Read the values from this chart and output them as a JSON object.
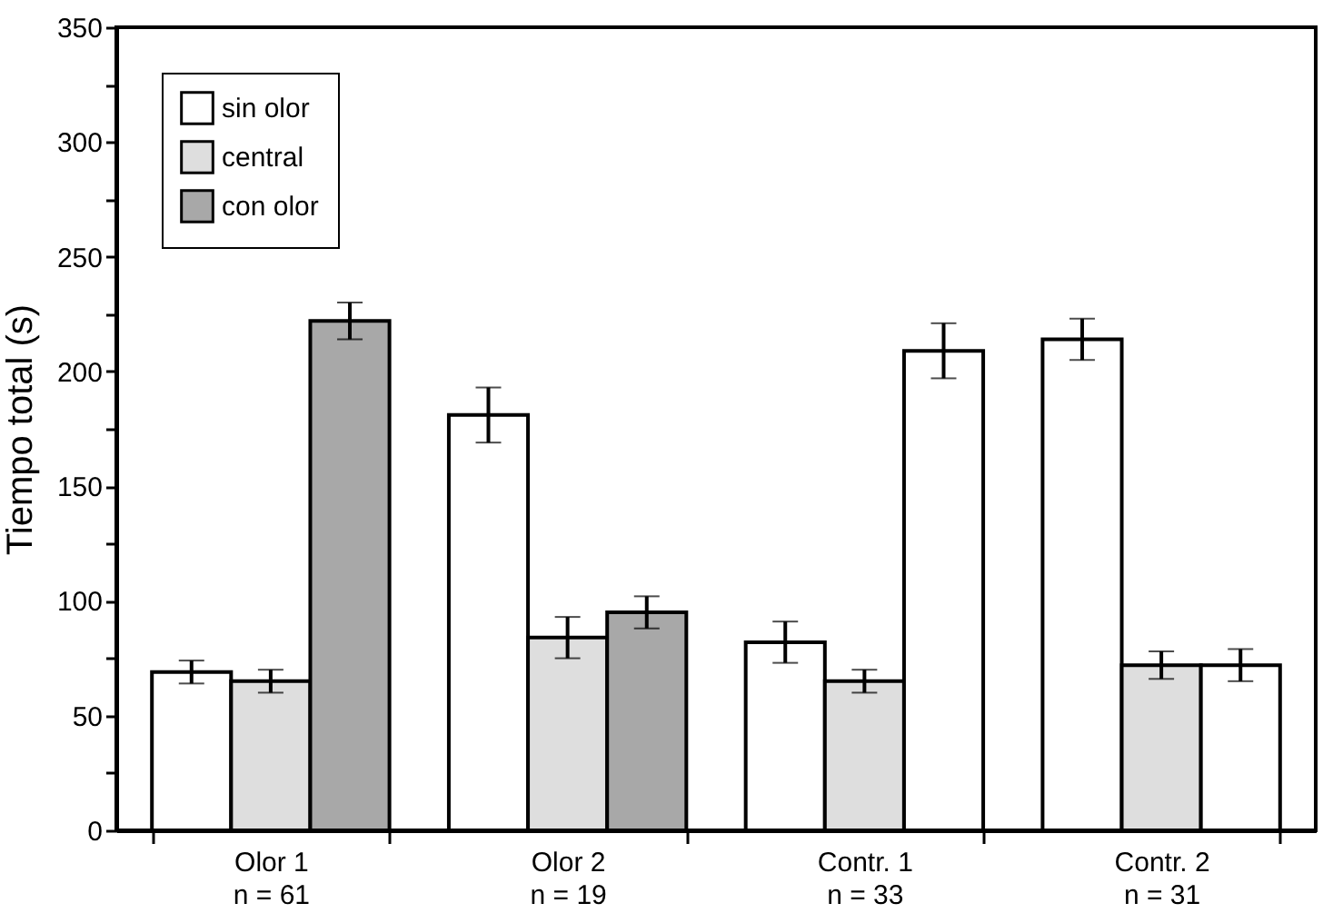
{
  "chart_data": {
    "type": "bar",
    "ylabel": "Tiempo total (s)",
    "categories": [
      "Olor 1\nn = 61",
      "Olor 2\nn = 19",
      "Contr. 1\nn = 33",
      "Contr. 2\nn = 31"
    ],
    "series": [
      {
        "name": "sin olor",
        "color": "#ffffff",
        "values": [
          69,
          181,
          82,
          214
        ],
        "errors": [
          5,
          12,
          9,
          9
        ]
      },
      {
        "name": "central",
        "color": "#dedede",
        "values": [
          65,
          84,
          65,
          72
        ],
        "errors": [
          5,
          9,
          5,
          6
        ]
      },
      {
        "name": "con olor",
        "color": "#a8a8a8",
        "colors": [
          "#a8a8a8",
          "#a8a8a8",
          "#ffffff",
          "#ffffff"
        ],
        "values": [
          222,
          95,
          209,
          72
        ],
        "errors": [
          8,
          7,
          12,
          7
        ]
      }
    ],
    "ylim": [
      0,
      350
    ],
    "yticks": [
      0,
      {
        "value": 25,
        "label": null
      },
      50,
      {
        "value": 75,
        "label": null
      },
      100,
      {
        "value": 125,
        "label": null
      },
      150,
      {
        "value": 175,
        "label": null
      },
      200,
      {
        "value": 225,
        "label": null
      },
      250,
      {
        "value": 275,
        "label": null
      },
      300,
      {
        "value": 325,
        "label": null
      },
      350
    ],
    "legend": "top left",
    "grid": false
  }
}
